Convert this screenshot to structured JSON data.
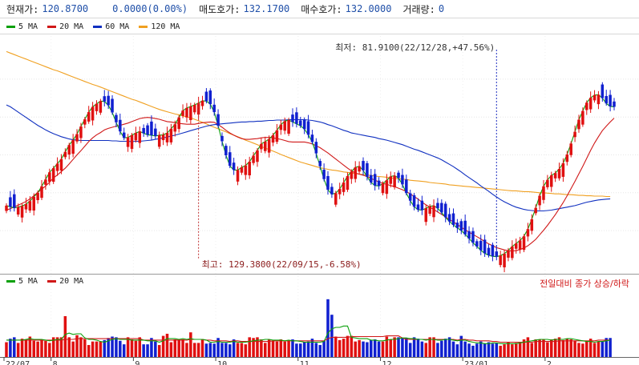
{
  "header": {
    "current_label": "현재가:",
    "current_value": "120.8700",
    "change_value": "0.0000(0.00%)",
    "ask_label": "매도호가:",
    "ask_value": "132.1700",
    "bid_label": "매수호가:",
    "bid_value": "132.0000",
    "volume_label": "거래량:",
    "volume_value": "0"
  },
  "price_legend": [
    {
      "label": "5 MA",
      "color": "#0aa00a"
    },
    {
      "label": "20 MA",
      "color": "#d01818"
    },
    {
      "label": "60 MA",
      "color": "#1030c0"
    },
    {
      "label": "120 MA",
      "color": "#f0a020"
    }
  ],
  "volume_legend": [
    {
      "label": "5 MA",
      "color": "#0aa00a"
    },
    {
      "label": "20 MA",
      "color": "#d01818"
    }
  ],
  "volume_note": "전일대비 종가 상승/하락",
  "annotations": {
    "high": {
      "text": "최고: 129.3800(22/09/15,-6.58%)",
      "bar_index": 49
    },
    "low": {
      "text": "최저: 81.9100(22/12/28,+47.56%)",
      "bar_index": 125
    }
  },
  "x_axis": {
    "labels": [
      "22/07",
      "8",
      "9",
      "10",
      "11",
      "12",
      "23/01",
      "2"
    ]
  },
  "colors": {
    "up": "#e01010",
    "down": "#1020d0",
    "grid": "#c0c0c0"
  },
  "chart_data": {
    "type": "candlestick",
    "x_axis_labels": [
      "22/07",
      "8",
      "9",
      "10",
      "11",
      "12",
      "23/01",
      "2"
    ],
    "y_range": [
      78.6,
      141.4
    ],
    "volume_range": [
      0,
      100
    ],
    "series": [
      {
        "name": "5 MA",
        "values": [
          96.6,
          96.3,
          96.0,
          96.2,
          96.5,
          97.0,
          97.8,
          98.9,
          100.0,
          101.7,
          103.5,
          105.4,
          106.5,
          107.7,
          108.9,
          110.8,
          112.6,
          113.9,
          115.5,
          117.5,
          119.4,
          121.3,
          122.7,
          123.5,
          124.2,
          124.1,
          123.1,
          121.2,
          118.6,
          116.2,
          114.5,
          114.6,
          115.2,
          115.8,
          116.2,
          115.7,
          115.3,
          115.2,
          115.0,
          115.2,
          115.3,
          115.8,
          116.9,
          118.1,
          119.9,
          121.7,
          122.4,
          122.8,
          123.2,
          123.7,
          124.3,
          124.2,
          123.4,
          121.3,
          117.7,
          113.6,
          109.9,
          107.1,
          106.0,
          106.0,
          106.7,
          107.2,
          108.2,
          109.8,
          111.2,
          112.9,
          113.5,
          114.2,
          115.2,
          116.5,
          118.0,
          118.9,
          119.2,
          118.7,
          118.2,
          117.7,
          116.8,
          115.3,
          113.4,
          110.4,
          107.0,
          103.6,
          100.8,
          99.6,
          99.9,
          101.0,
          102.7,
          104.4,
          105.6,
          106.7,
          107.0,
          105.9,
          104.2,
          102.7,
          101.9,
          101.8,
          102.4,
          103.3,
          104.3,
          104.5,
          103.9,
          102.2,
          99.9,
          97.9,
          96.3,
          95.5,
          95.4,
          95.9,
          96.4,
          96.6,
          95.9,
          94.8,
          93.5,
          92.4,
          91.5,
          90.7,
          90.0,
          89.0,
          87.9,
          86.8,
          85.8,
          84.8,
          84.0,
          83.5,
          83.2,
          83.1,
          83.4,
          83.9,
          84.8,
          85.8,
          86.6,
          87.4,
          88.5,
          90.4,
          93.0,
          96.0,
          99.2,
          101.7,
          103.4,
          104.6,
          105.2,
          106.3,
          107.8,
          110.1,
          113.0,
          116.1,
          119.3,
          121.6,
          123.8,
          125.1,
          125.8,
          125.9,
          125.0,
          123.6,
          122.8,
          122.7
        ]
      },
      {
        "name": "20 MA",
        "values": [
          95.4,
          95.8,
          96.3,
          96.7,
          97.2,
          97.7,
          98.4,
          99.2,
          100.1,
          100.9,
          101.8,
          102.8,
          103.9,
          104.7,
          105.6,
          106.5,
          107.6,
          108.8,
          110.0,
          111.1,
          112.3,
          113.5,
          114.5,
          115.3,
          115.9,
          116.6,
          117.0,
          117.3,
          117.6,
          117.8,
          118.1,
          118.4,
          118.8,
          119.2,
          119.6,
          119.8,
          119.9,
          119.8,
          119.6,
          119.4,
          119.1,
          118.8,
          118.7,
          118.5,
          118.3,
          118.2,
          118.1,
          118.1,
          118.1,
          118.3,
          118.5,
          118.6,
          118.7,
          118.6,
          118.0,
          117.3,
          116.5,
          115.8,
          115.2,
          114.7,
          114.3,
          114.1,
          114.1,
          114.2,
          114.3,
          114.5,
          114.6,
          114.6,
          114.5,
          114.3,
          114.1,
          113.8,
          113.5,
          113.4,
          113.4,
          113.4,
          113.4,
          113.2,
          112.9,
          112.4,
          111.9,
          111.2,
          110.5,
          109.7,
          108.9,
          108.1,
          107.3,
          106.5,
          105.8,
          105.2,
          104.9,
          104.6,
          104.3,
          103.8,
          103.3,
          102.9,
          102.5,
          102.2,
          101.9,
          101.6,
          101.2,
          100.8,
          100.3,
          99.7,
          99.0,
          98.3,
          97.5,
          96.8,
          96.2,
          95.6,
          94.9,
          94.3,
          93.6,
          92.9,
          92.3,
          91.6,
          90.9,
          90.2,
          89.6,
          89.0,
          88.4,
          87.8,
          87.1,
          86.5,
          86.0,
          85.5,
          85.2,
          84.9,
          84.7,
          84.6,
          84.7,
          85.0,
          85.4,
          86.0,
          86.8,
          87.7,
          88.9,
          90.1,
          91.4,
          92.8,
          94.2,
          95.8,
          97.4,
          99.2,
          101.1,
          103.0,
          105.0,
          107.0,
          109.1,
          111.2,
          113.1,
          114.8,
          116.4,
          117.6,
          118.7,
          119.7
        ]
      },
      {
        "name": "60 MA",
        "values": [
          123.2,
          122.7,
          122.0,
          121.3,
          120.6,
          119.9,
          119.2,
          118.5,
          117.8,
          117.2,
          116.6,
          116.1,
          115.6,
          115.2,
          114.8,
          114.5,
          114.2,
          114.0,
          113.9,
          113.8,
          113.8,
          113.8,
          113.8,
          113.8,
          113.8,
          113.8,
          113.8,
          113.7,
          113.7,
          113.6,
          113.6,
          113.6,
          113.5,
          113.6,
          113.6,
          113.7,
          113.8,
          113.9,
          114.1,
          114.3,
          114.5,
          114.7,
          115.0,
          115.2,
          115.5,
          115.8,
          116.1,
          116.4,
          116.7,
          117.0,
          117.3,
          117.6,
          117.8,
          118.0,
          118.1,
          118.2,
          118.3,
          118.4,
          118.5,
          118.6,
          118.7,
          118.7,
          118.8,
          118.8,
          118.9,
          118.9,
          119.0,
          119.1,
          119.1,
          119.2,
          119.2,
          119.2,
          119.3,
          119.3,
          119.3,
          119.3,
          119.3,
          119.2,
          119.1,
          118.9,
          118.7,
          118.4,
          118.0,
          117.7,
          117.3,
          116.9,
          116.5,
          116.2,
          115.8,
          115.6,
          115.4,
          115.2,
          115.0,
          114.8,
          114.6,
          114.3,
          114.1,
          113.9,
          113.6,
          113.3,
          113.0,
          112.7,
          112.3,
          111.9,
          111.5,
          111.2,
          110.8,
          110.4,
          110.0,
          109.6,
          109.2,
          108.7,
          108.1,
          107.5,
          106.9,
          106.2,
          105.5,
          104.7,
          104.0,
          103.3,
          102.6,
          101.8,
          101.1,
          100.4,
          99.6,
          98.9,
          98.2,
          97.6,
          97.1,
          96.6,
          96.2,
          95.9,
          95.6,
          95.4,
          95.3,
          95.2,
          95.2,
          95.2,
          95.3,
          95.4,
          95.6,
          95.8,
          96.0,
          96.2,
          96.4,
          96.6,
          96.9,
          97.2,
          97.5,
          97.7,
          97.9,
          98.1,
          98.2,
          98.3,
          98.4
        ]
      },
      {
        "name": "120 MA",
        "values": [
          137.3,
          136.9,
          136.5,
          136.1,
          135.7,
          135.3,
          134.9,
          134.5,
          134.1,
          133.7,
          133.3,
          132.9,
          132.5,
          132.2,
          131.8,
          131.4,
          131.0,
          130.6,
          130.2,
          129.8,
          129.4,
          129.0,
          128.6,
          128.3,
          127.9,
          127.5,
          127.1,
          126.7,
          126.3,
          125.9,
          125.5,
          125.1,
          124.7,
          124.4,
          124.0,
          123.6,
          123.2,
          122.8,
          122.4,
          122.0,
          121.7,
          121.4,
          121.1,
          120.8,
          120.6,
          120.3,
          120.0,
          119.8,
          119.4,
          119.0,
          118.6,
          118.2,
          117.7,
          117.3,
          116.9,
          116.5,
          116.1,
          115.6,
          115.2,
          114.8,
          114.4,
          113.9,
          113.5,
          113.1,
          112.7,
          112.2,
          111.8,
          111.4,
          111.0,
          110.6,
          110.1,
          109.7,
          109.3,
          108.9,
          108.5,
          108.1,
          107.8,
          107.5,
          107.2,
          106.9,
          106.6,
          106.4,
          106.2,
          106.0,
          105.9,
          105.7,
          105.5,
          105.4,
          105.2,
          105.1,
          104.9,
          104.8,
          104.7,
          104.6,
          104.4,
          104.3,
          104.2,
          104.1,
          103.9,
          103.8,
          103.7,
          103.6,
          103.5,
          103.3,
          103.2,
          103.1,
          103.0,
          102.9,
          102.7,
          102.6,
          102.5,
          102.4,
          102.3,
          102.1,
          102.0,
          101.9,
          101.8,
          101.7,
          101.6,
          101.5,
          101.4,
          101.3,
          101.2,
          101.1,
          101.0,
          100.9,
          100.8,
          100.7,
          100.6,
          100.5,
          100.5,
          100.4,
          100.3,
          100.3,
          100.2,
          100.1,
          100.0,
          100.0,
          99.9,
          99.8,
          99.7,
          99.7,
          99.6,
          99.5,
          99.5,
          99.4,
          99.3,
          99.3,
          99.2,
          99.2,
          99.1,
          99.1,
          99.1,
          99.0,
          99.0
        ]
      },
      {
        "name": "Volume",
        "values": [
          21,
          26,
          28,
          20,
          26,
          25,
          29,
          23,
          22,
          25,
          23,
          20,
          28,
          28,
          28,
          58,
          28,
          22,
          31,
          28,
          25,
          17,
          22,
          22,
          22,
          24,
          27,
          29,
          28,
          23,
          18,
          28,
          25,
          23,
          28,
          18,
          18,
          27,
          22,
          17,
          30,
          33,
          21,
          25,
          25,
          25,
          20,
          35,
          20,
          20,
          25,
          19,
          20,
          19,
          27,
          20,
          20,
          18,
          25,
          20,
          20,
          18,
          28,
          27,
          28,
          25,
          20,
          25,
          23,
          22,
          25,
          22,
          23,
          25,
          19,
          19,
          21,
          22,
          26,
          20,
          17,
          23,
          82,
          60,
          29,
          24,
          26,
          30,
          30,
          22,
          24,
          22,
          21,
          24,
          25,
          22,
          22,
          29,
          25,
          28,
          28,
          27,
          27,
          20,
          28,
          26,
          22,
          20,
          28,
          28,
          20,
          23,
          26,
          28,
          22,
          18,
          30,
          22,
          19,
          16,
          19,
          22,
          19,
          21,
          19,
          20,
          16,
          18,
          21,
          18,
          20,
          21,
          25,
          28,
          20,
          25,
          25,
          25,
          21,
          25,
          26,
          28,
          24,
          26,
          25,
          23,
          20,
          19,
          22,
          26,
          20,
          22,
          22,
          27,
          27
        ]
      },
      {
        "name": "Volume 5 MA",
        "values": [
          24,
          24,
          24,
          24,
          24,
          25,
          26,
          25,
          25,
          25,
          24,
          23,
          24,
          25,
          25,
          32,
          34,
          32,
          33,
          33,
          27,
          25,
          25,
          24,
          22,
          21,
          23,
          25,
          26,
          25,
          25,
          25,
          24,
          24,
          24,
          24,
          23,
          23,
          23,
          21,
          23,
          26,
          26,
          26,
          25,
          26,
          25,
          26,
          25,
          25,
          25,
          24,
          21,
          21,
          22,
          21,
          21,
          21,
          22,
          21,
          21,
          21,
          22,
          23,
          24,
          24,
          25,
          25,
          24,
          24,
          24,
          23,
          24,
          23,
          23,
          22,
          21,
          21,
          21,
          21,
          21,
          22,
          34,
          40,
          42,
          42,
          44,
          44,
          28,
          27,
          26,
          26,
          26,
          24,
          24,
          23,
          23,
          24,
          25,
          25,
          26,
          27,
          27,
          26,
          26,
          25,
          25,
          24,
          25,
          25,
          24,
          24,
          25,
          25,
          24,
          23,
          24,
          24,
          22,
          21,
          20,
          20,
          19,
          19,
          20,
          20,
          19,
          19,
          19,
          19,
          19,
          20,
          21,
          22,
          23,
          24,
          25,
          25,
          25,
          24,
          25,
          25,
          25,
          26,
          26,
          25,
          24,
          23,
          22,
          22,
          21,
          22,
          22,
          23,
          24
        ]
      },
      {
        "name": "Volume 20 MA",
        "values": [
          24,
          24,
          24,
          24,
          24,
          24,
          24,
          24,
          24,
          24,
          24,
          24,
          24,
          24,
          24,
          25,
          25,
          25,
          26,
          26,
          26,
          26,
          26,
          26,
          26,
          26,
          26,
          26,
          26,
          26,
          26,
          26,
          26,
          26,
          26,
          24,
          24,
          24,
          24,
          24,
          24,
          24,
          24,
          24,
          24,
          24,
          24,
          25,
          25,
          25,
          25,
          24,
          24,
          23,
          23,
          23,
          23,
          22,
          23,
          23,
          22,
          22,
          22,
          22,
          22,
          22,
          22,
          22,
          23,
          23,
          23,
          23,
          23,
          23,
          23,
          23,
          23,
          23,
          23,
          23,
          23,
          23,
          26,
          28,
          28,
          28,
          28,
          28,
          29,
          29,
          29,
          29,
          29,
          29,
          29,
          29,
          29,
          30,
          30,
          30,
          30,
          27,
          25,
          25,
          25,
          25,
          25,
          25,
          25,
          25,
          25,
          25,
          25,
          25,
          25,
          24,
          25,
          25,
          24,
          24,
          23,
          23,
          23,
          23,
          22,
          22,
          21,
          21,
          21,
          21,
          21,
          21,
          21,
          21,
          21,
          22,
          22,
          22,
          22,
          22,
          22,
          23,
          23,
          23,
          23,
          23,
          23,
          23,
          23,
          23,
          23,
          24,
          24,
          24,
          24
        ]
      }
    ]
  }
}
